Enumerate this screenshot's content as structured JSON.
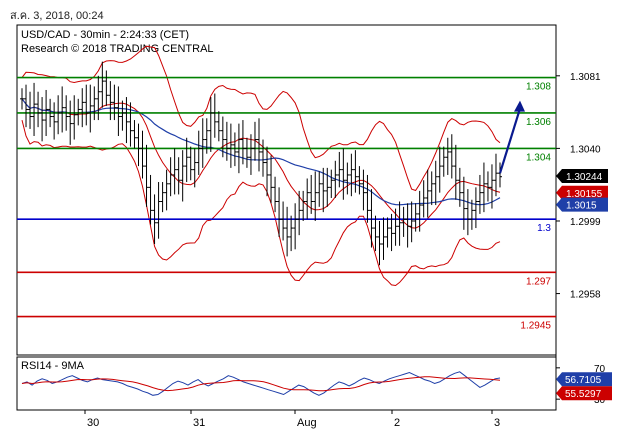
{
  "timestamp": "ส.ค. 3, 2018, 00:24",
  "chart_data": {
    "type": "candlestick",
    "title": "USD/CAD - 30min - 2:24:33 (CET)",
    "subtitle": "Research © 2018 TRADING CENTRAL",
    "ylim": [
      1.2925,
      1.3108
    ],
    "y_ticks": [
      "1.3081",
      "1.3040",
      "1.2999",
      "1.2958"
    ],
    "x_ticks": [
      "30",
      "31",
      "Aug",
      "2",
      "3"
    ],
    "levels": [
      {
        "label": "1.308",
        "value": 1.308,
        "color": "#008000"
      },
      {
        "label": "1.306",
        "value": 1.306,
        "color": "#008000"
      },
      {
        "label": "1.304",
        "value": 1.304,
        "color": "#008000"
      },
      {
        "label": "1.3",
        "value": 1.3,
        "color": "#0000cc"
      },
      {
        "label": "1.297",
        "value": 1.297,
        "color": "#cc0000"
      },
      {
        "label": "1.2945",
        "value": 1.2945,
        "color": "#cc0000"
      }
    ],
    "price_tags": [
      {
        "label": "1.30244",
        "value": 1.30244,
        "color": "#000000"
      },
      {
        "label": "1.30155",
        "value": 1.30155,
        "color": "#cc0000"
      },
      {
        "label": "1.3015",
        "value": 1.3015,
        "color": "#1f3fa8"
      }
    ],
    "close_series": [
      1.3068,
      1.3062,
      1.3058,
      1.3065,
      1.306,
      1.3056,
      1.3062,
      1.3058,
      1.3055,
      1.306,
      1.3063,
      1.3058,
      1.3054,
      1.3059,
      1.3062,
      1.3066,
      1.306,
      1.3064,
      1.3068,
      1.3072,
      1.3078,
      1.307,
      1.3066,
      1.3063,
      1.3058,
      1.306,
      1.3055,
      1.305,
      1.3046,
      1.304,
      1.303,
      1.3018,
      1.3005,
      1.2998,
      1.301,
      1.3015,
      1.302,
      1.3025,
      1.3028,
      1.3022,
      1.303,
      1.3035,
      1.3028,
      1.3032,
      1.304,
      1.3045,
      1.305,
      1.306,
      1.3055,
      1.305,
      1.3045,
      1.304,
      1.3042,
      1.3038,
      1.3045,
      1.304,
      1.3035,
      1.304,
      1.3045,
      1.3038,
      1.3032,
      1.3025,
      1.3018,
      1.301,
      1.3,
      1.2995,
      1.299,
      1.2995,
      1.3,
      1.3005,
      1.301,
      1.3015,
      1.301,
      1.3015,
      1.302,
      1.3016,
      1.3018,
      1.3022,
      1.3025,
      1.3028,
      1.3022,
      1.3025,
      1.3028,
      1.3024,
      1.302,
      1.3015,
      1.3005,
      1.2995,
      1.299,
      1.2986,
      1.299,
      1.2995,
      1.2992,
      1.2996,
      1.2998,
      1.3,
      1.2996,
      1.2999,
      1.3003,
      1.3008,
      1.3012,
      1.3016,
      1.302,
      1.3024,
      1.303,
      1.3035,
      1.3038,
      1.303,
      1.3022,
      1.3015,
      1.3006,
      1.3,
      1.3005,
      1.301,
      1.3015,
      1.302,
      1.3018,
      1.3022,
      1.3026,
      1.3024
    ],
    "arrow": {
      "from": [
        1.3026
      ],
      "to": [
        1.3067
      ]
    },
    "rsi": {
      "label": "RSI14 - 9MA",
      "ylim": [
        20,
        80
      ],
      "ticks": [
        "70",
        "30"
      ],
      "rsi_tag": "56.7105",
      "ma_tag": "55.5297",
      "rsi_value": 56.7105,
      "ma_value": 55.5297,
      "values": [
        50,
        52,
        48,
        53,
        56,
        54,
        50,
        52,
        55,
        58,
        60,
        57,
        54,
        52,
        55,
        57,
        55,
        54,
        53,
        52,
        50,
        47,
        45,
        43,
        40,
        38,
        35,
        36,
        40,
        45,
        50,
        53,
        51,
        48,
        52,
        55,
        50,
        47,
        50,
        53,
        56,
        60,
        58,
        55,
        52,
        50,
        48,
        46,
        44,
        42,
        40,
        38,
        36,
        40,
        44,
        48,
        46,
        42,
        38,
        35,
        38,
        43,
        48,
        52,
        50,
        47,
        50,
        54,
        57,
        55,
        52,
        50,
        53,
        56,
        58,
        60,
        62,
        64,
        61,
        58,
        55,
        53,
        50,
        52,
        56,
        60,
        63,
        65,
        60,
        55,
        50,
        45,
        48,
        52,
        56,
        57
      ]
    }
  }
}
